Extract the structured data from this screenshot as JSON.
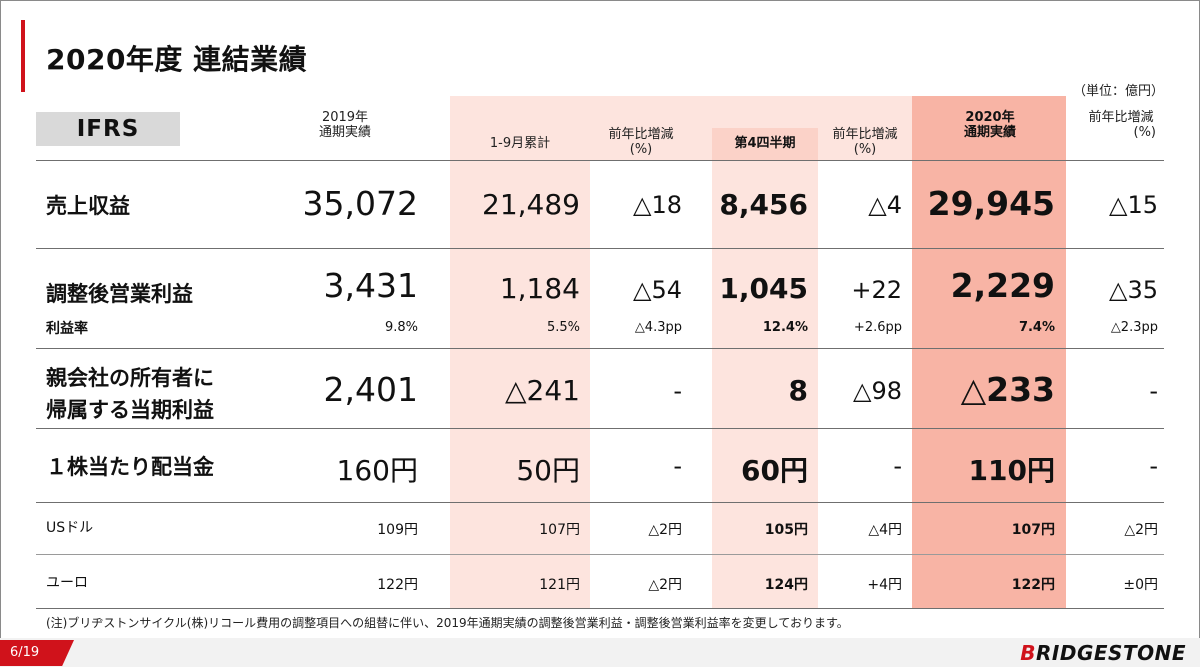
{
  "title": "2020年度 連結業績",
  "unit": "（単位：億円）",
  "ifrs": "IFRS",
  "headers": {
    "fy2019": [
      "2019年",
      "通期実績"
    ],
    "m9": "1-9月累計",
    "m9_yoy": [
      "前年比増減",
      "(%)"
    ],
    "q4": "第4四半期",
    "q4_yoy": [
      "前年比増減",
      "(%)"
    ],
    "fy2020": [
      "2020年",
      "通期実績"
    ],
    "fy2020_yoy": [
      "前年比増減",
      "(%)"
    ]
  },
  "rows": {
    "revenue": {
      "label": "売上収益",
      "fy2019": "35,072",
      "m9": "21,489",
      "m9_yoy": "△18",
      "q4": "8,456",
      "q4_yoy": "△4",
      "fy2020": "29,945",
      "fy2020_yoy": "△15"
    },
    "op_income": {
      "label": "調整後営業利益",
      "fy2019": "3,431",
      "m9": "1,184",
      "m9_yoy": "△54",
      "q4": "1,045",
      "q4_yoy": "+22",
      "fy2020": "2,229",
      "fy2020_yoy": "△35"
    },
    "margin": {
      "label": "利益率",
      "fy2019": "9.8%",
      "m9": "5.5%",
      "m9_yoy": "△4.3pp",
      "q4": "12.4%",
      "q4_yoy": "+2.6pp",
      "fy2020": "7.4%",
      "fy2020_yoy": "△2.3pp"
    },
    "net_income": {
      "label1": "親会社の所有者に",
      "label2": "帰属する当期利益",
      "fy2019": "2,401",
      "m9": "△241",
      "m9_yoy": "-",
      "q4": "8",
      "q4_yoy": "△98",
      "fy2020": "△233",
      "fy2020_yoy": "-"
    },
    "dividend": {
      "label": "１株当たり配当金",
      "fy2019": "160円",
      "m9": "50円",
      "m9_yoy": "-",
      "q4": "60円",
      "q4_yoy": "-",
      "fy2020": "110円",
      "fy2020_yoy": "-"
    },
    "usd": {
      "label": "USドル",
      "fy2019": "109円",
      "m9": "107円",
      "m9_yoy": "△2円",
      "q4": "105円",
      "q4_yoy": "△4円",
      "fy2020": "107円",
      "fy2020_yoy": "△2円"
    },
    "eur": {
      "label": "ユーロ",
      "fy2019": "122円",
      "m9": "121円",
      "m9_yoy": "△2円",
      "q4": "124円",
      "q4_yoy": "+4円",
      "fy2020": "122円",
      "fy2020_yoy": "±0円"
    }
  },
  "note": "(注)ブリヂストンサイクル(株)リコール費用の調整項目への組替に伴い、2019年通期実績の調整後営業利益・調整後営業利益率を変更しております。",
  "page": "6/19",
  "logo": {
    "first": "B",
    "rest": "RIDGESTONE"
  },
  "colors": {
    "accent": "#d0121b",
    "band_light": "#fde4de",
    "band_mid": "#fbd2c8",
    "band_deep": "#f8b4a5"
  }
}
